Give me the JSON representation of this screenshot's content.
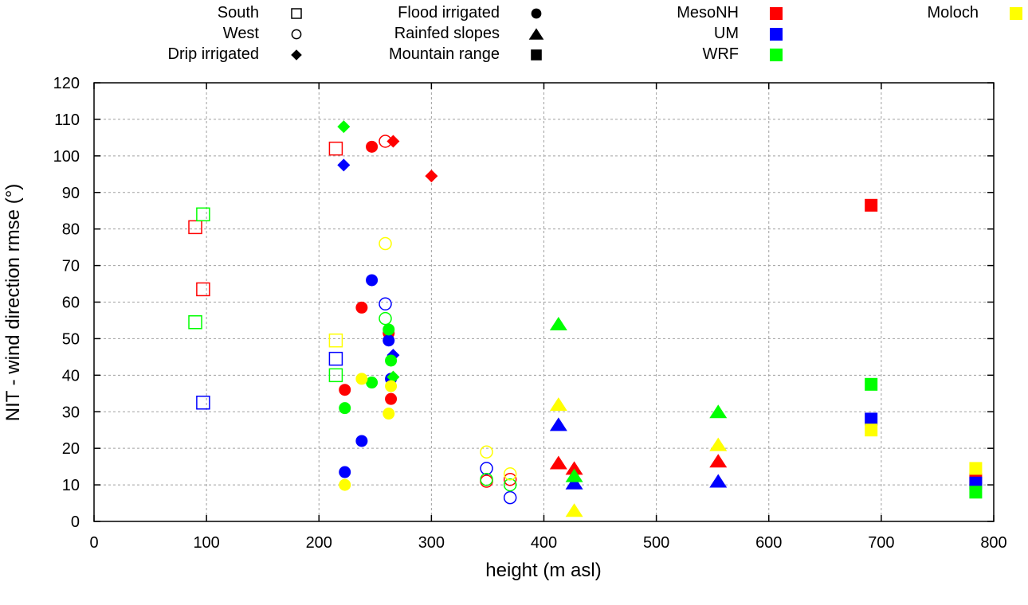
{
  "chart_data": {
    "type": "scatter",
    "title": "",
    "xlabel": "height (m asl)",
    "ylabel": "NIT - wind direction rmse (°)",
    "xlim": [
      0,
      800
    ],
    "ylim": [
      0,
      120
    ],
    "xticks": [
      0,
      100,
      200,
      300,
      400,
      500,
      600,
      700,
      800
    ],
    "yticks": [
      0,
      10,
      20,
      30,
      40,
      50,
      60,
      70,
      80,
      90,
      100,
      110,
      120
    ],
    "grid": true,
    "legend_placement": "top (outside plot)",
    "legend_shapes": [
      {
        "label": "South",
        "shape": "open-square"
      },
      {
        "label": "West",
        "shape": "open-circle"
      },
      {
        "label": "Drip irrigated",
        "shape": "filled-diamond"
      },
      {
        "label": "Flood irrigated",
        "shape": "filled-circle"
      },
      {
        "label": "Rainfed slopes",
        "shape": "filled-triangle"
      },
      {
        "label": "Mountain range",
        "shape": "filled-square"
      }
    ],
    "legend_models": [
      {
        "label": "MesoNH",
        "color": "#ff0000"
      },
      {
        "label": "UM",
        "color": "#0000ff"
      },
      {
        "label": "WRF",
        "color": "#00ff00"
      },
      {
        "label": "Moloch",
        "color": "#ffff00"
      }
    ],
    "series": [
      {
        "name": "MesoNH",
        "color": "#ff0000",
        "points": [
          {
            "x": 90,
            "y": 80.5,
            "shape": "open-square"
          },
          {
            "x": 97,
            "y": 63.5,
            "shape": "open-square"
          },
          {
            "x": 215,
            "y": 102,
            "shape": "open-square"
          },
          {
            "x": 259,
            "y": 104,
            "shape": "open-circle"
          },
          {
            "x": 349,
            "y": 11,
            "shape": "open-circle"
          },
          {
            "x": 370,
            "y": 11.5,
            "shape": "open-circle"
          },
          {
            "x": 266,
            "y": 104,
            "shape": "filled-diamond"
          },
          {
            "x": 300,
            "y": 94.5,
            "shape": "filled-diamond"
          },
          {
            "x": 247,
            "y": 102.5,
            "shape": "filled-circle"
          },
          {
            "x": 238,
            "y": 58.5,
            "shape": "filled-circle"
          },
          {
            "x": 223,
            "y": 36,
            "shape": "filled-circle"
          },
          {
            "x": 264,
            "y": 33.5,
            "shape": "filled-circle"
          },
          {
            "x": 262,
            "y": 51.5,
            "shape": "filled-circle"
          },
          {
            "x": 413,
            "y": 16,
            "shape": "filled-triangle"
          },
          {
            "x": 427,
            "y": 14.5,
            "shape": "filled-triangle"
          },
          {
            "x": 555,
            "y": 16.5,
            "shape": "filled-triangle"
          },
          {
            "x": 691,
            "y": 86.5,
            "shape": "filled-square"
          },
          {
            "x": 784,
            "y": 11.5,
            "shape": "filled-square"
          }
        ]
      },
      {
        "name": "UM",
        "color": "#0000ff",
        "points": [
          {
            "x": 97,
            "y": 32.5,
            "shape": "open-square"
          },
          {
            "x": 215,
            "y": 44.5,
            "shape": "open-square"
          },
          {
            "x": 259,
            "y": 59.5,
            "shape": "open-circle"
          },
          {
            "x": 349,
            "y": 14.5,
            "shape": "open-circle"
          },
          {
            "x": 370,
            "y": 6.5,
            "shape": "open-circle"
          },
          {
            "x": 222,
            "y": 97.5,
            "shape": "filled-diamond"
          },
          {
            "x": 266,
            "y": 45.5,
            "shape": "filled-diamond"
          },
          {
            "x": 247,
            "y": 66,
            "shape": "filled-circle"
          },
          {
            "x": 238,
            "y": 22,
            "shape": "filled-circle"
          },
          {
            "x": 223,
            "y": 13.5,
            "shape": "filled-circle"
          },
          {
            "x": 262,
            "y": 49.5,
            "shape": "filled-circle"
          },
          {
            "x": 264,
            "y": 39,
            "shape": "filled-circle"
          },
          {
            "x": 413,
            "y": 26.5,
            "shape": "filled-triangle"
          },
          {
            "x": 427,
            "y": 10.5,
            "shape": "filled-triangle"
          },
          {
            "x": 555,
            "y": 11,
            "shape": "filled-triangle"
          },
          {
            "x": 691,
            "y": 28,
            "shape": "filled-square"
          },
          {
            "x": 784,
            "y": 10.5,
            "shape": "filled-square"
          }
        ]
      },
      {
        "name": "WRF",
        "color": "#00ff00",
        "points": [
          {
            "x": 97,
            "y": 84,
            "shape": "open-square"
          },
          {
            "x": 90,
            "y": 54.5,
            "shape": "open-square"
          },
          {
            "x": 215,
            "y": 40,
            "shape": "open-square"
          },
          {
            "x": 259,
            "y": 55.5,
            "shape": "open-circle"
          },
          {
            "x": 349,
            "y": 11.5,
            "shape": "open-circle"
          },
          {
            "x": 370,
            "y": 10,
            "shape": "open-circle"
          },
          {
            "x": 222,
            "y": 108,
            "shape": "filled-diamond"
          },
          {
            "x": 266,
            "y": 39.5,
            "shape": "filled-diamond"
          },
          {
            "x": 262,
            "y": 52.5,
            "shape": "filled-circle"
          },
          {
            "x": 264,
            "y": 44,
            "shape": "filled-circle"
          },
          {
            "x": 247,
            "y": 38,
            "shape": "filled-circle"
          },
          {
            "x": 223,
            "y": 31,
            "shape": "filled-circle"
          },
          {
            "x": 413,
            "y": 54,
            "shape": "filled-triangle"
          },
          {
            "x": 427,
            "y": 12.5,
            "shape": "filled-triangle"
          },
          {
            "x": 555,
            "y": 30,
            "shape": "filled-triangle"
          },
          {
            "x": 691,
            "y": 37.5,
            "shape": "filled-square"
          },
          {
            "x": 784,
            "y": 8,
            "shape": "filled-square"
          }
        ]
      },
      {
        "name": "Moloch",
        "color": "#ffff00",
        "points": [
          {
            "x": 215,
            "y": 49.5,
            "shape": "open-square"
          },
          {
            "x": 259,
            "y": 76,
            "shape": "open-circle"
          },
          {
            "x": 349,
            "y": 19,
            "shape": "open-circle"
          },
          {
            "x": 370,
            "y": 13,
            "shape": "open-circle"
          },
          {
            "x": 238,
            "y": 39,
            "shape": "filled-circle"
          },
          {
            "x": 264,
            "y": 37,
            "shape": "filled-circle"
          },
          {
            "x": 262,
            "y": 29.5,
            "shape": "filled-circle"
          },
          {
            "x": 223,
            "y": 10,
            "shape": "filled-circle"
          },
          {
            "x": 413,
            "y": 32,
            "shape": "filled-triangle"
          },
          {
            "x": 427,
            "y": 3,
            "shape": "filled-triangle"
          },
          {
            "x": 555,
            "y": 21,
            "shape": "filled-triangle"
          },
          {
            "x": 691,
            "y": 25,
            "shape": "filled-square"
          },
          {
            "x": 784,
            "y": 14.5,
            "shape": "filled-square"
          }
        ]
      }
    ]
  }
}
